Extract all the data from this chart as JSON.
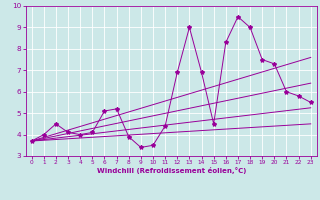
{
  "xlabel": "Windchill (Refroidissement éolien,°C)",
  "ylabel": "",
  "bg_color": "#cce8e8",
  "line_color": "#990099",
  "xlim": [
    -0.5,
    23.5
  ],
  "ylim": [
    3,
    10
  ],
  "xticks": [
    0,
    1,
    2,
    3,
    4,
    5,
    6,
    7,
    8,
    9,
    10,
    11,
    12,
    13,
    14,
    15,
    16,
    17,
    18,
    19,
    20,
    21,
    22,
    23
  ],
  "yticks": [
    3,
    4,
    5,
    6,
    7,
    8,
    9,
    10
  ],
  "grid_color": "#ffffff",
  "main_line": {
    "x": [
      0,
      1,
      2,
      3,
      4,
      5,
      6,
      7,
      8,
      9,
      10,
      11,
      12,
      13,
      14,
      15,
      16,
      17,
      18,
      19,
      20,
      21,
      22,
      23
    ],
    "y": [
      3.7,
      4.0,
      4.5,
      4.1,
      4.0,
      4.1,
      5.1,
      5.2,
      3.9,
      3.4,
      3.5,
      4.4,
      6.9,
      9.0,
      6.9,
      4.5,
      8.3,
      9.5,
      9.0,
      7.5,
      7.3,
      6.0,
      5.8,
      5.5
    ]
  },
  "reg_lines": [
    {
      "x": [
        0,
        23
      ],
      "y": [
        3.7,
        7.6
      ]
    },
    {
      "x": [
        0,
        23
      ],
      "y": [
        3.7,
        6.4
      ]
    },
    {
      "x": [
        0,
        23
      ],
      "y": [
        3.7,
        5.25
      ]
    },
    {
      "x": [
        0,
        23
      ],
      "y": [
        3.7,
        4.5
      ]
    }
  ]
}
